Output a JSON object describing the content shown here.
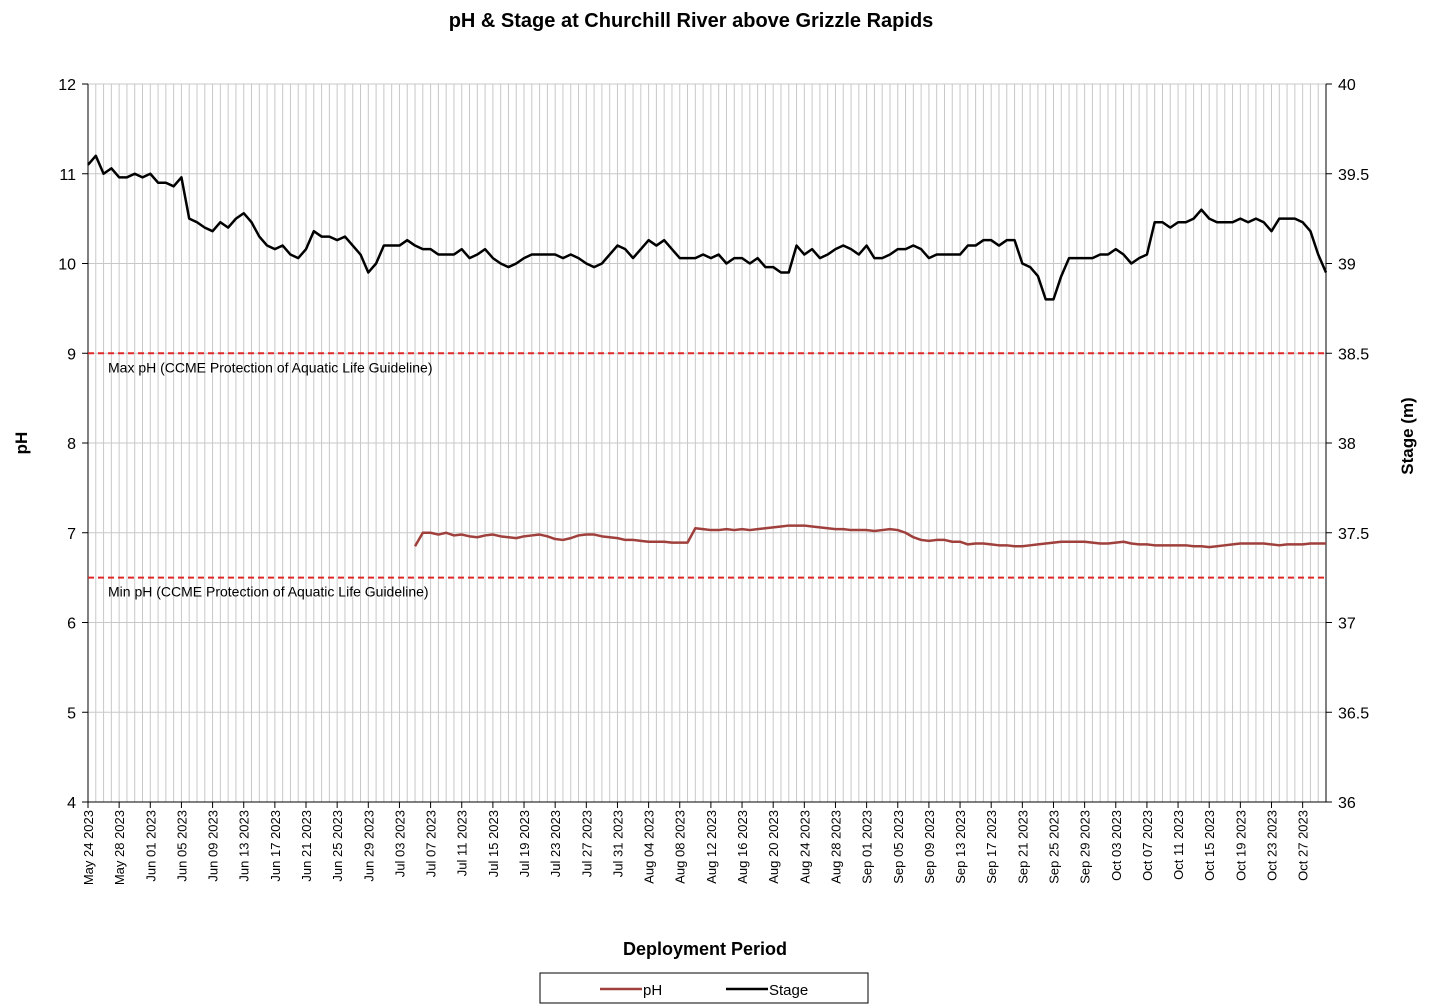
{
  "chart_data": {
    "type": "line",
    "title": "pH & Stage at Churchill River above Grizzle Rapids",
    "x_label": "Deployment Period",
    "y_label": "pH",
    "y2_label": "Stage (m)",
    "grid": true,
    "legend": "bottom",
    "xlim": [
      "2023-05-24",
      "2023-10-30"
    ],
    "ylim": [
      4,
      12
    ],
    "yticks": [
      4,
      5,
      6,
      7,
      8,
      9,
      10,
      11,
      12
    ],
    "y2lim": [
      36,
      40
    ],
    "y2ticks": [
      36,
      36.5,
      37,
      37.5,
      38,
      38.5,
      39,
      39.5,
      40
    ],
    "xticks": [
      {
        "value": "2023-05-24",
        "label": "May 24 2023"
      },
      {
        "value": "2023-05-28",
        "label": "May 28 2023"
      },
      {
        "value": "2023-06-01",
        "label": "Jun 01 2023"
      },
      {
        "value": "2023-06-05",
        "label": "Jun 05 2023"
      },
      {
        "value": "2023-06-09",
        "label": "Jun 09 2023"
      },
      {
        "value": "2023-06-13",
        "label": "Jun 13 2023"
      },
      {
        "value": "2023-06-17",
        "label": "Jun 17 2023"
      },
      {
        "value": "2023-06-21",
        "label": "Jun 21 2023"
      },
      {
        "value": "2023-06-25",
        "label": "Jun 25 2023"
      },
      {
        "value": "2023-06-29",
        "label": "Jun 29 2023"
      },
      {
        "value": "2023-07-03",
        "label": "Jul 03 2023"
      },
      {
        "value": "2023-07-07",
        "label": "Jul 07 2023"
      },
      {
        "value": "2023-07-11",
        "label": "Jul 11 2023"
      },
      {
        "value": "2023-07-15",
        "label": "Jul 15 2023"
      },
      {
        "value": "2023-07-19",
        "label": "Jul 19 2023"
      },
      {
        "value": "2023-07-23",
        "label": "Jul 23 2023"
      },
      {
        "value": "2023-07-27",
        "label": "Jul 27 2023"
      },
      {
        "value": "2023-07-31",
        "label": "Jul 31 2023"
      },
      {
        "value": "2023-08-04",
        "label": "Aug 04 2023"
      },
      {
        "value": "2023-08-08",
        "label": "Aug 08 2023"
      },
      {
        "value": "2023-08-12",
        "label": "Aug 12 2023"
      },
      {
        "value": "2023-08-16",
        "label": "Aug 16 2023"
      },
      {
        "value": "2023-08-20",
        "label": "Aug 20 2023"
      },
      {
        "value": "2023-08-24",
        "label": "Aug 24 2023"
      },
      {
        "value": "2023-08-28",
        "label": "Aug 28 2023"
      },
      {
        "value": "2023-09-01",
        "label": "Sep 01 2023"
      },
      {
        "value": "2023-09-05",
        "label": "Sep 05 2023"
      },
      {
        "value": "2023-09-09",
        "label": "Sep 09 2023"
      },
      {
        "value": "2023-09-13",
        "label": "Sep 13 2023"
      },
      {
        "value": "2023-09-17",
        "label": "Sep 17 2023"
      },
      {
        "value": "2023-09-21",
        "label": "Sep 21 2023"
      },
      {
        "value": "2023-09-25",
        "label": "Sep 25 2023"
      },
      {
        "value": "2023-09-29",
        "label": "Sep 29 2023"
      },
      {
        "value": "2023-10-03",
        "label": "Oct 03 2023"
      },
      {
        "value": "2023-10-07",
        "label": "Oct 07 2023"
      },
      {
        "value": "2023-10-11",
        "label": "Oct 11 2023"
      },
      {
        "value": "2023-10-15",
        "label": "Oct 15 2023"
      },
      {
        "value": "2023-10-19",
        "label": "Oct 19 2023"
      },
      {
        "value": "2023-10-23",
        "label": "Oct 23 2023"
      },
      {
        "value": "2023-10-27",
        "label": "Oct 27 2023"
      }
    ],
    "hlines": [
      {
        "value": 9,
        "label": "Max pH  (CCME  Protection of Aquatic Life Guideline)",
        "color": "#e02828"
      },
      {
        "value": 6.5,
        "label": "Min pH  (CCME  Protection of Aquatic Life Guideline)",
        "color": "#e02828"
      }
    ],
    "x": [
      "2023-05-24",
      "2023-05-25",
      "2023-05-26",
      "2023-05-27",
      "2023-05-28",
      "2023-05-29",
      "2023-05-30",
      "2023-05-31",
      "2023-06-01",
      "2023-06-02",
      "2023-06-03",
      "2023-06-04",
      "2023-06-05",
      "2023-06-06",
      "2023-06-07",
      "2023-06-08",
      "2023-06-09",
      "2023-06-10",
      "2023-06-11",
      "2023-06-12",
      "2023-06-13",
      "2023-06-14",
      "2023-06-15",
      "2023-06-16",
      "2023-06-17",
      "2023-06-18",
      "2023-06-19",
      "2023-06-20",
      "2023-06-21",
      "2023-06-22",
      "2023-06-23",
      "2023-06-24",
      "2023-06-25",
      "2023-06-26",
      "2023-06-27",
      "2023-06-28",
      "2023-06-29",
      "2023-06-30",
      "2023-07-01",
      "2023-07-02",
      "2023-07-03",
      "2023-07-04",
      "2023-07-05",
      "2023-07-06",
      "2023-07-07",
      "2023-07-08",
      "2023-07-09",
      "2023-07-10",
      "2023-07-11",
      "2023-07-12",
      "2023-07-13",
      "2023-07-14",
      "2023-07-15",
      "2023-07-16",
      "2023-07-17",
      "2023-07-18",
      "2023-07-19",
      "2023-07-20",
      "2023-07-21",
      "2023-07-22",
      "2023-07-23",
      "2023-07-24",
      "2023-07-25",
      "2023-07-26",
      "2023-07-27",
      "2023-07-28",
      "2023-07-29",
      "2023-07-30",
      "2023-07-31",
      "2023-08-01",
      "2023-08-02",
      "2023-08-03",
      "2023-08-04",
      "2023-08-05",
      "2023-08-06",
      "2023-08-07",
      "2023-08-08",
      "2023-08-09",
      "2023-08-10",
      "2023-08-11",
      "2023-08-12",
      "2023-08-13",
      "2023-08-14",
      "2023-08-15",
      "2023-08-16",
      "2023-08-17",
      "2023-08-18",
      "2023-08-19",
      "2023-08-20",
      "2023-08-21",
      "2023-08-22",
      "2023-08-23",
      "2023-08-24",
      "2023-08-25",
      "2023-08-26",
      "2023-08-27",
      "2023-08-28",
      "2023-08-29",
      "2023-08-30",
      "2023-08-31",
      "2023-09-01",
      "2023-09-02",
      "2023-09-03",
      "2023-09-04",
      "2023-09-05",
      "2023-09-06",
      "2023-09-07",
      "2023-09-08",
      "2023-09-09",
      "2023-09-10",
      "2023-09-11",
      "2023-09-12",
      "2023-09-13",
      "2023-09-14",
      "2023-09-15",
      "2023-09-16",
      "2023-09-17",
      "2023-09-18",
      "2023-09-19",
      "2023-09-20",
      "2023-09-21",
      "2023-09-22",
      "2023-09-23",
      "2023-09-24",
      "2023-09-25",
      "2023-09-26",
      "2023-09-27",
      "2023-09-28",
      "2023-09-29",
      "2023-09-30",
      "2023-10-01",
      "2023-10-02",
      "2023-10-03",
      "2023-10-04",
      "2023-10-05",
      "2023-10-06",
      "2023-10-07",
      "2023-10-08",
      "2023-10-09",
      "2023-10-10",
      "2023-10-11",
      "2023-10-12",
      "2023-10-13",
      "2023-10-14",
      "2023-10-15",
      "2023-10-16",
      "2023-10-17",
      "2023-10-18",
      "2023-10-19",
      "2023-10-20",
      "2023-10-21",
      "2023-10-22",
      "2023-10-23",
      "2023-10-24",
      "2023-10-25",
      "2023-10-26",
      "2023-10-27",
      "2023-10-28",
      "2023-10-29",
      "2023-10-30"
    ],
    "series": [
      {
        "name": "pH",
        "color": "#a0403c",
        "axis": "y",
        "values": [
          null,
          null,
          null,
          null,
          null,
          null,
          null,
          null,
          null,
          null,
          null,
          null,
          null,
          null,
          null,
          null,
          null,
          null,
          null,
          null,
          null,
          null,
          null,
          null,
          null,
          null,
          null,
          null,
          null,
          null,
          null,
          null,
          null,
          null,
          null,
          null,
          null,
          null,
          null,
          null,
          null,
          null,
          6.85,
          7.0,
          7.0,
          6.98,
          7.0,
          6.97,
          6.98,
          6.96,
          6.95,
          6.97,
          6.98,
          6.96,
          6.95,
          6.94,
          6.96,
          6.97,
          6.98,
          6.96,
          6.93,
          6.92,
          6.94,
          6.97,
          6.98,
          6.98,
          6.96,
          6.95,
          6.94,
          6.92,
          6.92,
          6.91,
          6.9,
          6.9,
          6.9,
          6.89,
          6.89,
          6.89,
          7.05,
          7.04,
          7.03,
          7.03,
          7.04,
          7.03,
          7.04,
          7.03,
          7.04,
          7.05,
          7.06,
          7.07,
          7.08,
          7.08,
          7.08,
          7.07,
          7.06,
          7.05,
          7.04,
          7.04,
          7.03,
          7.03,
          7.03,
          7.02,
          7.03,
          7.04,
          7.03,
          7.0,
          6.95,
          6.92,
          6.91,
          6.92,
          6.92,
          6.9,
          6.9,
          6.87,
          6.88,
          6.88,
          6.87,
          6.86,
          6.86,
          6.85,
          6.85,
          6.86,
          6.87,
          6.88,
          6.89,
          6.9,
          6.9,
          6.9,
          6.9,
          6.89,
          6.88,
          6.88,
          6.89,
          6.9,
          6.88,
          6.87,
          6.87,
          6.86,
          6.86,
          6.86,
          6.86,
          6.86,
          6.85,
          6.85,
          6.84,
          6.85,
          6.86,
          6.87,
          6.88,
          6.88,
          6.88,
          6.88,
          6.87,
          6.86,
          6.87,
          6.87,
          6.87,
          6.88,
          6.88,
          6.88
        ]
      },
      {
        "name": "Stage",
        "color": "#000000",
        "axis": "y2",
        "values": [
          39.55,
          39.6,
          39.5,
          39.53,
          39.48,
          39.48,
          39.5,
          39.48,
          39.5,
          39.45,
          39.45,
          39.43,
          39.48,
          39.25,
          39.23,
          39.2,
          39.18,
          39.23,
          39.2,
          39.25,
          39.28,
          39.23,
          39.15,
          39.1,
          39.08,
          39.1,
          39.05,
          39.03,
          39.08,
          39.18,
          39.15,
          39.15,
          39.13,
          39.15,
          39.1,
          39.05,
          38.95,
          39.0,
          39.1,
          39.1,
          39.1,
          39.13,
          39.1,
          39.08,
          39.08,
          39.05,
          39.05,
          39.05,
          39.08,
          39.03,
          39.05,
          39.08,
          39.03,
          39.0,
          38.98,
          39.0,
          39.03,
          39.05,
          39.05,
          39.05,
          39.05,
          39.03,
          39.05,
          39.03,
          39.0,
          38.98,
          39.0,
          39.05,
          39.1,
          39.08,
          39.03,
          39.08,
          39.13,
          39.1,
          39.13,
          39.08,
          39.03,
          39.03,
          39.03,
          39.05,
          39.03,
          39.05,
          39.0,
          39.03,
          39.03,
          39.0,
          39.03,
          38.98,
          38.98,
          38.95,
          38.95,
          39.1,
          39.05,
          39.08,
          39.03,
          39.05,
          39.08,
          39.1,
          39.08,
          39.05,
          39.1,
          39.03,
          39.03,
          39.05,
          39.08,
          39.08,
          39.1,
          39.08,
          39.03,
          39.05,
          39.05,
          39.05,
          39.05,
          39.1,
          39.1,
          39.13,
          39.13,
          39.1,
          39.13,
          39.13,
          39.0,
          38.98,
          38.93,
          38.8,
          38.8,
          38.93,
          39.03,
          39.03,
          39.03,
          39.03,
          39.05,
          39.05,
          39.08,
          39.05,
          39.0,
          39.03,
          39.05,
          39.23,
          39.23,
          39.2,
          39.23,
          39.23,
          39.25,
          39.3,
          39.25,
          39.23,
          39.23,
          39.23,
          39.25,
          39.23,
          39.25,
          39.23,
          39.18,
          39.25,
          39.25,
          39.25,
          39.23,
          39.18,
          39.05,
          38.95
        ]
      }
    ]
  }
}
